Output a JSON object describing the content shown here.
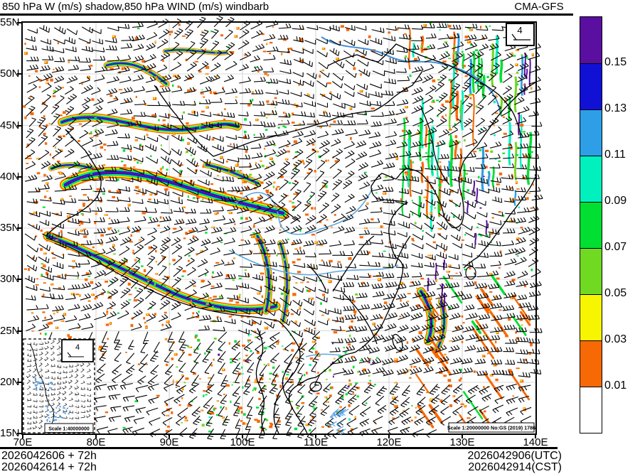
{
  "header": {
    "title": "850 hPa W (m/s) shadow,850 hPa WIND (m/s) windbarb",
    "model": "CMA-GFS"
  },
  "axes": {
    "x_ticks": [
      "70E",
      "80E",
      "90E",
      "100E",
      "110E",
      "120E",
      "130E",
      "140E"
    ],
    "y_ticks": [
      "55N",
      "50N",
      "45N",
      "40N",
      "35N",
      "30N",
      "25N",
      "20N",
      "15N"
    ]
  },
  "colorbar": {
    "tick_labels": [
      "0.15",
      "0.13",
      "0.11",
      "0.09",
      "0.07",
      "0.05",
      "0.03",
      "0.01"
    ],
    "segment_colors_top_to_bottom": [
      "#5a0fa0",
      "#1111d6",
      "#2e9fe6",
      "#00f0be",
      "#00df32",
      "#70d921",
      "#f8f500",
      "#f76905",
      "#ffffff"
    ]
  },
  "annotations": {
    "ref_barb_value": "4",
    "inset_ref_barb_value": "4",
    "scale_main": "Scale 1:20000000 No:GS (2019) 1786",
    "scale_inset": "Scale 1:40000000"
  },
  "footer": {
    "init_line1": "2026042606 + 72h",
    "init_line2": "2026042614 + 72h",
    "valid_line1": "2026042906(UTC)",
    "valid_line2": "2026042914(CST)"
  },
  "chart_data": {
    "type": "heatmap",
    "title": "850 hPa W (m/s) shadow,850 hPa WIND (m/s) windbarb",
    "model": "CMA-GFS",
    "x_axis": {
      "label_format": "longitude deg E",
      "ticks": [
        70,
        80,
        90,
        100,
        110,
        120,
        130,
        140
      ],
      "range": [
        70,
        140
      ]
    },
    "y_axis": {
      "label_format": "latitude deg N",
      "ticks": [
        15,
        20,
        25,
        30,
        35,
        40,
        45,
        50,
        55
      ],
      "range": [
        15,
        55
      ]
    },
    "shading_variable": "850 hPa vertical velocity W (m/s)",
    "shading_levels": [
      0.01,
      0.03,
      0.05,
      0.07,
      0.09,
      0.11,
      0.13,
      0.15
    ],
    "shading_colors_low_to_high": [
      "#ffffff",
      "#f76905",
      "#f8f500",
      "#70d921",
      "#00df32",
      "#00f0be",
      "#2e9fe6",
      "#1111d6",
      "#5a0fa0"
    ],
    "overlay": "850 hPa wind barbs, reference barb value 4 m/s",
    "legend_position": "right",
    "grid": "on",
    "init_time_labels": [
      "2026042606 + 72h",
      "2026042614 + 72h"
    ],
    "valid_time_labels": [
      "2026042906(UTC)",
      "2026042914(CST)"
    ]
  }
}
